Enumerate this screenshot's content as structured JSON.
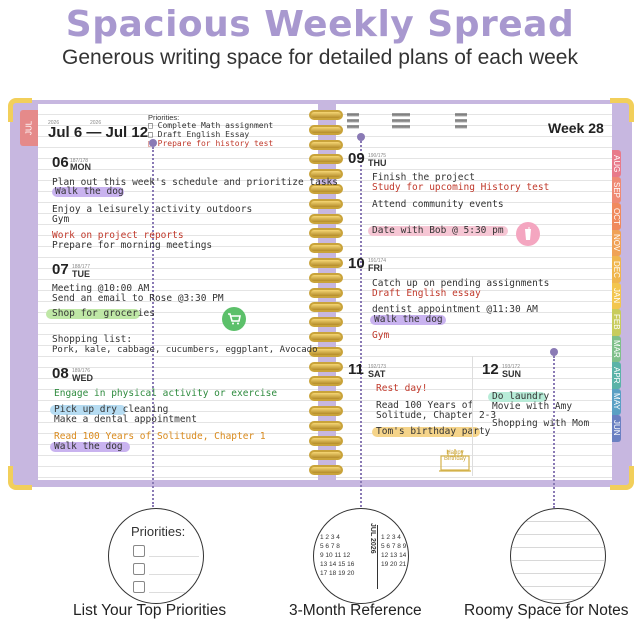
{
  "headline": "Spacious Weekly Spread",
  "subline": "Generous writing space for detailed plans of each week",
  "colors": {
    "headline": "#a898cf",
    "cover": "#c7b7e0",
    "corner": "#f2cf5a",
    "ring": "#c9a33a"
  },
  "left_page": {
    "jul_tab": "JUL",
    "year_a": "2026",
    "year_b": "2026",
    "date_range": "Jul 6 — Jul 12",
    "priorities_title": "Priorities:",
    "priorities": [
      "Complete Math assignment",
      "Draft English Essay",
      "Prepare for history test"
    ],
    "days": [
      {
        "num": "06",
        "name": "MON",
        "code": "187/178"
      },
      {
        "num": "07",
        "name": "TUE",
        "code": "188/177"
      },
      {
        "num": "08",
        "name": "WED",
        "code": "189/176"
      }
    ],
    "mon_lines": [
      "Plan out this week's schedule and prioritize tasks",
      "Walk the dog",
      "Enjoy a leisurely activity outdoors",
      "Gym",
      "Work on project reports",
      "Prepare for morning meetings"
    ],
    "tue_lines": [
      "Meeting @10:00 AM",
      "Send an email to Rose @3:30 PM",
      "Shop for groceries",
      "Shopping list:",
      "Pork, kale, cabbage, cucumbers, eggplant, Avocado"
    ],
    "wed_lines": [
      "Engage in physical activity or exercise",
      "Pick up dry cleaning",
      "Make a dental appointment",
      "Read 100 Years of Solitude, Chapter 1",
      "Walk the dog"
    ]
  },
  "right_page": {
    "week_label": "Week 28",
    "days": [
      {
        "num": "09",
        "name": "THU",
        "code": "190/175"
      },
      {
        "num": "10",
        "name": "FRI",
        "code": "191/174"
      },
      {
        "num": "11",
        "name": "SAT",
        "code": "192/173"
      },
      {
        "num": "12",
        "name": "SUN",
        "code": "193/172"
      }
    ],
    "thu_lines": [
      "Finish the project",
      "Study for upcoming History test",
      "Attend community events",
      "Date with Bob @ 5:30 pm"
    ],
    "fri_lines": [
      "Catch up on pending assignments",
      "Draft English essay",
      "dentist appointment @11:30 AM",
      "Walk the dog",
      "Gym"
    ],
    "sat_lines": [
      "Rest day!",
      "Read 100 Years of",
      "Solitude, Chapter 2-3",
      "Tom's birthday party"
    ],
    "sun_lines": [
      "Do laundry",
      "Movie with Amy",
      "Shopping with Mom"
    ],
    "cake_text": "Happy Birthday"
  },
  "month_tabs": [
    {
      "label": "AUG",
      "color": "#e87a8a"
    },
    {
      "label": "SEP",
      "color": "#ef8a74"
    },
    {
      "label": "OCT",
      "color": "#f08a5d"
    },
    {
      "label": "NOV",
      "color": "#f0a256"
    },
    {
      "label": "DEC",
      "color": "#f0b64e"
    },
    {
      "label": "JAN",
      "color": "#f3c64f"
    },
    {
      "label": "FEB",
      "color": "#c8cc5c"
    },
    {
      "label": "MAR",
      "color": "#7fc08a"
    },
    {
      "label": "APR",
      "color": "#5bb3a8"
    },
    {
      "label": "MAY",
      "color": "#5aa0c4"
    },
    {
      "label": "JUN",
      "color": "#6a80c2"
    }
  ],
  "zooms": {
    "priorities_title": "Priorities:",
    "calendar_label": "JUL 2026",
    "calendar_digits": [
      "1 2 3 4",
      "5 6 7 8",
      "9 10 11 12",
      "13 14 15 16",
      "17 18 19 20"
    ],
    "calendar_right": [
      "1 2 3 4",
      "5 6 7 8 9",
      "12 13 14 15",
      "19 20 21 22"
    ]
  },
  "captions": [
    "List Your Top Priorities",
    "3-Month Reference",
    "Roomy Space for Notes"
  ]
}
